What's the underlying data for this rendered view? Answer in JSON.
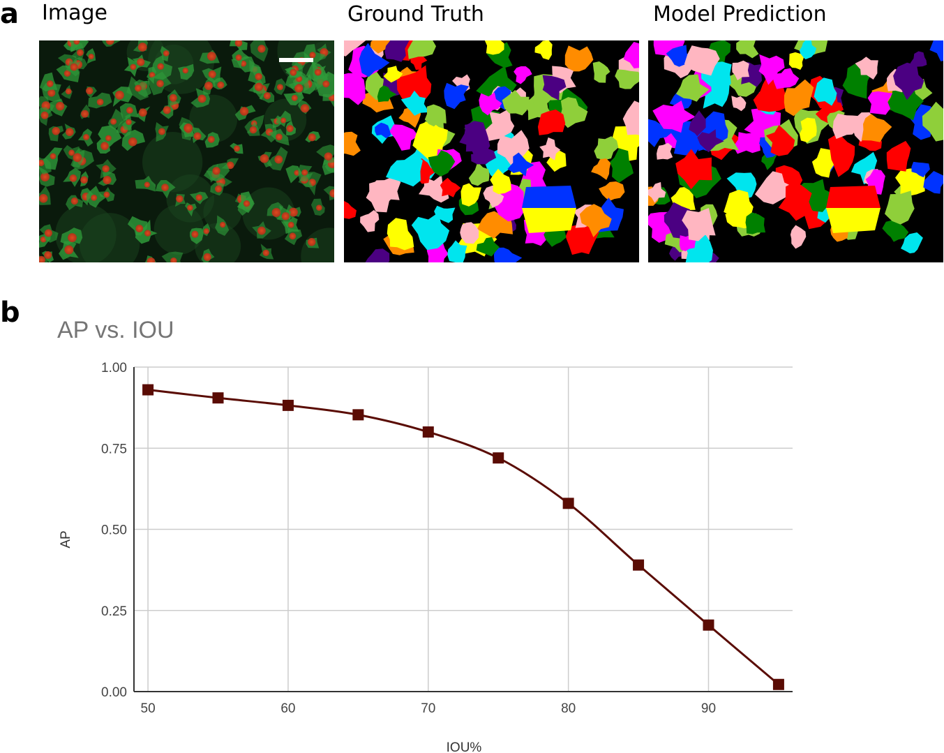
{
  "panel_a": {
    "letter": "a",
    "titles": [
      "Image",
      "Ground Truth",
      "Model Prediction"
    ]
  },
  "panel_b": {
    "letter": "b"
  },
  "colors": {
    "line": "#5a0c04",
    "grid": "#cccccc",
    "axis": "#333333",
    "title": "#757575",
    "tick": "#444444",
    "palette": [
      "#ff0000",
      "#0033ff",
      "#ffff00",
      "#ff00ff",
      "#00e5ee",
      "#008000",
      "#ff8c00",
      "#8fcf3a",
      "#4b0082",
      "#ffb6c1"
    ],
    "fluor_green": "#2f9a3a",
    "fluor_red": "#d23a1e"
  },
  "chart_data": {
    "type": "line",
    "title": "AP vs. IOU",
    "xlabel": "IOU%",
    "ylabel": "AP",
    "xlim": [
      49,
      96
    ],
    "ylim": [
      0,
      1
    ],
    "xticks": [
      50,
      60,
      70,
      80,
      90
    ],
    "yticks": [
      "0.00",
      "0.25",
      "0.50",
      "0.75",
      "1.00"
    ],
    "ytick_values": [
      0,
      0.25,
      0.5,
      0.75,
      1.0
    ],
    "grid": true,
    "marker": "square",
    "series": [
      {
        "x": [
          50,
          55,
          60,
          65,
          70,
          75,
          80,
          85,
          90,
          95
        ],
        "values": [
          0.93,
          0.905,
          0.882,
          0.853,
          0.8,
          0.72,
          0.58,
          0.39,
          0.205,
          0.022
        ]
      }
    ]
  }
}
